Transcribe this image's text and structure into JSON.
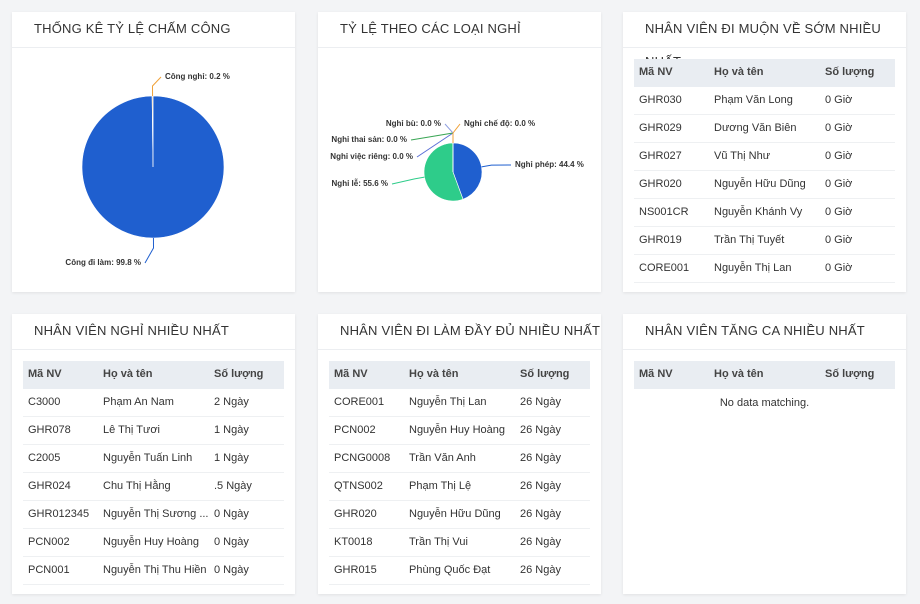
{
  "panels": [
    {
      "title": "THỐNG KÊ TỶ LỆ CHẤM CÔNG",
      "chart_data": {
        "type": "pie",
        "labels": [
          "Công đi làm: 99.8 %",
          "Công nghỉ: 0.2 %"
        ],
        "values": [
          99.8,
          0.2
        ],
        "colors": [
          "#1f5fcf",
          "#f0a23a"
        ]
      }
    },
    {
      "title": "TỶ LỆ THEO CÁC LOẠI NGHỈ",
      "chart_data": {
        "type": "pie",
        "labels": [
          "Nghỉ phép: 44.4 %",
          "Nghỉ lễ: 55.6 %",
          "Nghỉ việc riêng: 0.0 %",
          "Nghỉ thai sản: 0.0 %",
          "Nghỉ bù: 0.0 %",
          "Nghỉ chế độ: 0.0 %"
        ],
        "values": [
          44.4,
          55.6,
          0,
          0,
          0,
          0
        ],
        "colors": [
          "#1f5fcf",
          "#2ecc8a",
          "#5b6fd6",
          "#3aa655",
          "#8e9fe0",
          "#f0a23a"
        ]
      }
    },
    {
      "title": "NHÂN VIÊN ĐI MUỘN VỀ SỚM NHIỀU NHẤT",
      "table": {
        "columns": [
          "Mã NV",
          "Họ và tên",
          "Số lượng"
        ],
        "rows": [
          [
            "GHR030",
            "Phạm Văn Long",
            "0 Giờ"
          ],
          [
            "GHR029",
            "Dương Văn Biên",
            "0 Giờ"
          ],
          [
            "GHR027",
            "Vũ Thị Như",
            "0 Giờ"
          ],
          [
            "GHR020",
            "Nguyễn Hữu Dũng",
            "0 Giờ"
          ],
          [
            "NS001CR",
            "Nguyễn Khánh Vy",
            "0 Giờ"
          ],
          [
            "GHR019",
            "Trần Thị Tuyết",
            "0 Giờ"
          ],
          [
            "CORE001",
            "Nguyễn Thị Lan",
            "0 Giờ"
          ]
        ]
      }
    },
    {
      "title": "NHÂN VIÊN NGHỈ NHIỀU NHẤT",
      "table": {
        "columns": [
          "Mã NV",
          "Họ và tên",
          "Số lượng"
        ],
        "rows": [
          [
            "C3000",
            "Phạm An Nam",
            "2 Ngày"
          ],
          [
            "GHR078",
            "Lê Thị Tươi",
            "1 Ngày"
          ],
          [
            "C2005",
            "Nguyễn Tuấn Linh",
            "1 Ngày"
          ],
          [
            "GHR024",
            "Chu Thị Hằng",
            ".5 Ngày"
          ],
          [
            "GHR012345",
            "Nguyễn Thị Sương ...",
            "0 Ngày"
          ],
          [
            "PCN002",
            "Nguyễn Huy Hoàng",
            "0 Ngày"
          ],
          [
            "PCN001",
            "Nguyễn Thị Thu Hiền",
            "0 Ngày"
          ]
        ]
      }
    },
    {
      "title": "NHÂN VIÊN ĐI LÀM ĐẦY ĐỦ NHIỀU NHẤT",
      "table": {
        "columns": [
          "Mã NV",
          "Họ và tên",
          "Số lượng"
        ],
        "rows": [
          [
            "CORE001",
            "Nguyễn Thị Lan",
            "26 Ngày"
          ],
          [
            "PCN002",
            "Nguyễn Huy Hoàng",
            "26 Ngày"
          ],
          [
            "PCNG0008",
            "Trần Văn Anh",
            "26 Ngày"
          ],
          [
            "QTNS002",
            "Phạm Thị Lệ",
            "26 Ngày"
          ],
          [
            "GHR020",
            "Nguyễn Hữu Dũng",
            "26 Ngày"
          ],
          [
            "KT0018",
            "Trần Thị Vui",
            "26 Ngày"
          ],
          [
            "GHR015",
            "Phùng Quốc Đạt",
            "26 Ngày"
          ]
        ]
      }
    },
    {
      "title": "NHÂN VIÊN TĂNG CA NHIỀU NHẤT",
      "table": {
        "columns": [
          "Mã NV",
          "Họ và tên",
          "Số lượng"
        ],
        "rows": [],
        "empty_text": "No data matching."
      }
    }
  ]
}
